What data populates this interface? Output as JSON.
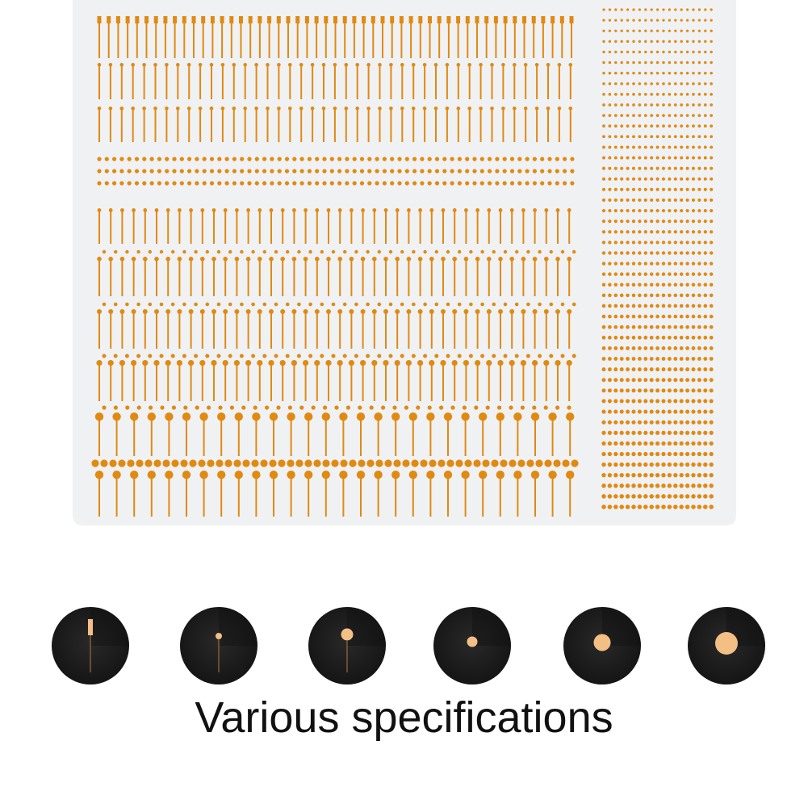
{
  "caption": "Various specifications",
  "colors": {
    "sheet": "#f0f1f3",
    "pad": "#e08a12",
    "disc": "#1c1b1c",
    "disc_pad": "#f3bf85",
    "disc_lead": "#9a6a40"
  },
  "spec_samples": [
    {
      "name": "rectangular-pad-pin"
    },
    {
      "name": "small-round-pad-pin"
    },
    {
      "name": "medium-round-pad-pin"
    },
    {
      "name": "small-round-pad"
    },
    {
      "name": "medium-round-pad"
    },
    {
      "name": "large-round-pad"
    }
  ]
}
